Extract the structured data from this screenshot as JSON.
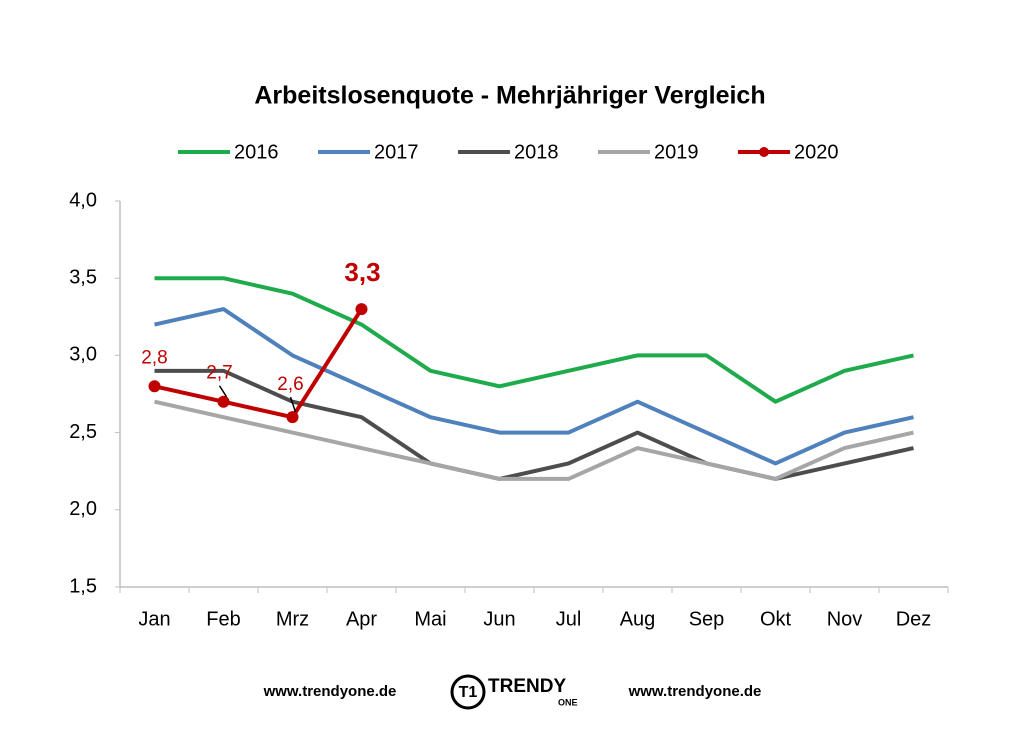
{
  "chart_data": {
    "type": "line",
    "title": "Arbeitslosenquote - Mehrjähriger Vergleich",
    "categories": [
      "Jan",
      "Feb",
      "Mrz",
      "Apr",
      "Mai",
      "Jun",
      "Jul",
      "Aug",
      "Sep",
      "Okt",
      "Nov",
      "Dez"
    ],
    "series": [
      {
        "name": "2016",
        "color": "#1faa4b",
        "values": [
          3.5,
          3.5,
          3.4,
          3.2,
          2.9,
          2.8,
          2.9,
          3.0,
          3.0,
          2.7,
          2.9,
          3.0
        ]
      },
      {
        "name": "2017",
        "color": "#4f81bd",
        "values": [
          3.2,
          3.3,
          3.0,
          2.8,
          2.6,
          2.5,
          2.5,
          2.7,
          2.5,
          2.3,
          2.5,
          2.6
        ]
      },
      {
        "name": "2018",
        "color": "#4d4d4d",
        "values": [
          2.9,
          2.9,
          2.7,
          2.6,
          2.3,
          2.2,
          2.3,
          2.5,
          2.3,
          2.2,
          2.3,
          2.4
        ]
      },
      {
        "name": "2019",
        "color": "#a6a6a6",
        "values": [
          2.7,
          2.6,
          2.5,
          2.4,
          2.3,
          2.2,
          2.2,
          2.4,
          2.3,
          2.2,
          2.4,
          2.5
        ]
      },
      {
        "name": "2020",
        "color": "#c00000",
        "marker": true,
        "values": [
          2.8,
          2.7,
          2.6,
          3.3,
          null,
          null,
          null,
          null,
          null,
          null,
          null,
          null
        ],
        "value_labels": [
          "2,8",
          "2,7",
          "2,6",
          "3,3",
          null,
          null,
          null,
          null,
          null,
          null,
          null,
          null
        ]
      }
    ],
    "ylim": [
      1.5,
      4.0
    ],
    "yticks": [
      {
        "value": 1.5,
        "label": "1,5"
      },
      {
        "value": 2.0,
        "label": "2,0"
      },
      {
        "value": 2.5,
        "label": "2,5"
      },
      {
        "value": 3.0,
        "label": "3,0"
      },
      {
        "value": 3.5,
        "label": "3,5"
      },
      {
        "value": 4.0,
        "label": "4,0"
      }
    ],
    "grid": false,
    "legend": "top"
  },
  "footer": {
    "left": "www.trendyone.de",
    "logo": "TRENDY",
    "logo_sub": "ONE",
    "right": "www.trendyone.de"
  }
}
